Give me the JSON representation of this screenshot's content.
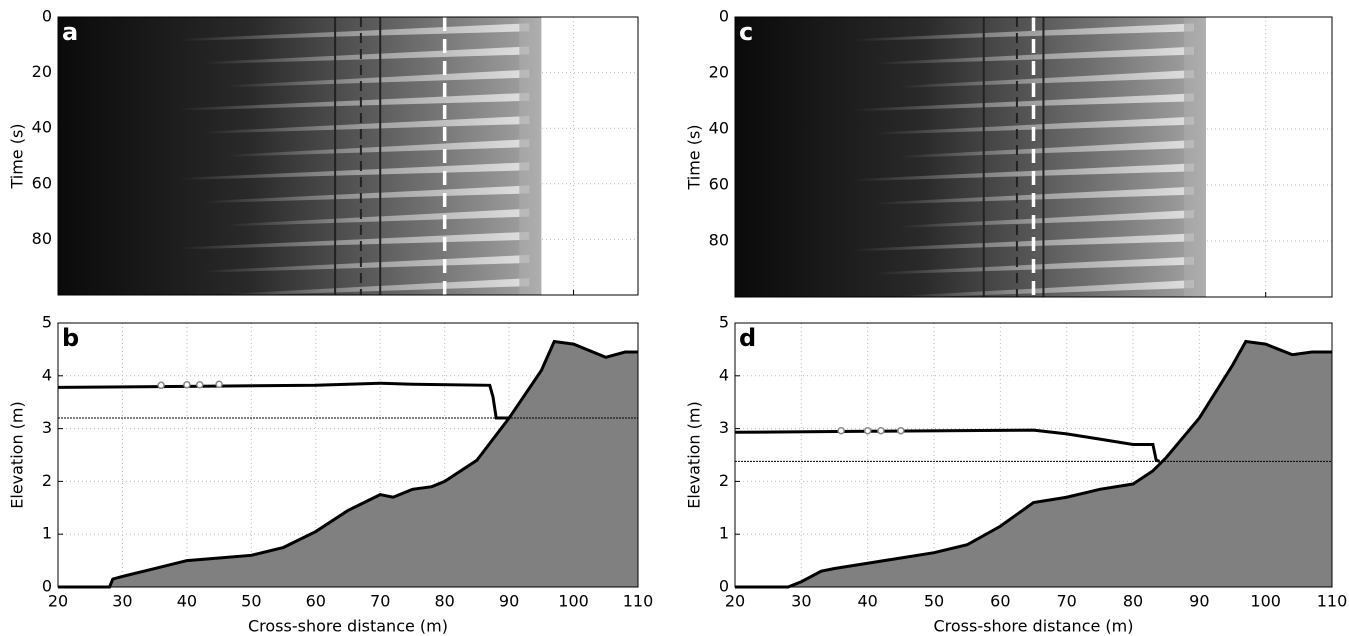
{
  "chart_data": [
    {
      "type": "image",
      "panel": "a",
      "ylabel": "Time (s)",
      "xlim": [
        20,
        110
      ],
      "xticks": [
        20,
        30,
        40,
        50,
        60,
        70,
        80,
        90,
        100,
        110
      ],
      "show_xtick_labels": false,
      "ylim": [
        0,
        100
      ],
      "y_inverted": true,
      "yticks": [
        0,
        20,
        40,
        60,
        80
      ],
      "grid": true,
      "image_xlim": [
        20,
        95
      ],
      "lines_x": [
        63,
        67,
        70
      ],
      "dashed_x": 80
    },
    {
      "type": "profile",
      "panel": "b",
      "xlabel": "Cross-shore distance (m)",
      "ylabel": "Elevation (m)",
      "xlim": [
        20,
        110
      ],
      "xticks": [
        20,
        30,
        40,
        50,
        60,
        70,
        80,
        90,
        100,
        110
      ],
      "show_xtick_labels": true,
      "ylim": [
        0,
        5
      ],
      "yticks": [
        0,
        1,
        2,
        3,
        4,
        5
      ],
      "grid": true,
      "bed": {
        "color": "#808080",
        "x": [
          20,
          28,
          28.5,
          30,
          35,
          40,
          45,
          50,
          55,
          60,
          65,
          70,
          72,
          75,
          78,
          80,
          85,
          90,
          95,
          97,
          100,
          105,
          108,
          110
        ],
        "y": [
          0,
          0,
          0.15,
          0.2,
          0.35,
          0.5,
          0.55,
          0.6,
          0.75,
          1.05,
          1.45,
          1.75,
          1.7,
          1.85,
          1.9,
          2.0,
          2.4,
          3.2,
          4.1,
          4.65,
          4.6,
          4.35,
          4.45,
          4.45
        ]
      },
      "water": {
        "color": "#000000",
        "x": [
          20,
          40,
          60,
          70,
          75,
          87,
          87.5,
          88,
          90
        ],
        "y": [
          3.78,
          3.8,
          3.82,
          3.86,
          3.84,
          3.82,
          3.6,
          3.2,
          3.2
        ]
      },
      "still_water_level": 3.2,
      "gauges": {
        "x": [
          36,
          40,
          42,
          45
        ],
        "y": [
          3.82,
          3.83,
          3.83,
          3.84
        ]
      }
    },
    {
      "type": "image",
      "panel": "c",
      "ylabel": "Time (s)",
      "xlim": [
        20,
        110
      ],
      "xticks": [
        20,
        30,
        40,
        50,
        60,
        70,
        80,
        90,
        100,
        110
      ],
      "show_xtick_labels": false,
      "ylim": [
        0,
        100
      ],
      "y_inverted": true,
      "yticks": [
        0,
        20,
        40,
        60,
        80
      ],
      "grid": true,
      "image_xlim": [
        20,
        91
      ],
      "lines_x": [
        57.5,
        62.5,
        66.5
      ],
      "dashed_x": 65
    },
    {
      "type": "profile",
      "panel": "d",
      "xlabel": "Cross-shore distance (m)",
      "ylabel": "Elevation (m)",
      "xlim": [
        20,
        110
      ],
      "xticks": [
        20,
        30,
        40,
        50,
        60,
        70,
        80,
        90,
        100,
        110
      ],
      "show_xtick_labels": true,
      "ylim": [
        0,
        5
      ],
      "yticks": [
        0,
        1,
        2,
        3,
        4,
        5
      ],
      "grid": true,
      "bed": {
        "color": "#808080",
        "x": [
          20,
          28,
          30,
          33,
          35,
          40,
          45,
          50,
          55,
          60,
          65,
          70,
          75,
          80,
          83,
          85,
          90,
          95,
          97,
          100,
          104,
          107,
          110
        ],
        "y": [
          0,
          0,
          0.1,
          0.3,
          0.35,
          0.45,
          0.55,
          0.65,
          0.8,
          1.15,
          1.6,
          1.7,
          1.85,
          1.95,
          2.2,
          2.45,
          3.2,
          4.2,
          4.65,
          4.6,
          4.4,
          4.45,
          4.45
        ]
      },
      "water": {
        "color": "#000000",
        "x": [
          20,
          40,
          65,
          70,
          75,
          80,
          83,
          83.5,
          84
        ],
        "y": [
          2.93,
          2.95,
          2.97,
          2.9,
          2.8,
          2.7,
          2.7,
          2.4,
          2.38
        ]
      },
      "still_water_level": 2.38,
      "gauges": {
        "x": [
          36,
          40,
          42,
          45
        ],
        "y": [
          2.96,
          2.96,
          2.96,
          2.96
        ]
      }
    }
  ]
}
